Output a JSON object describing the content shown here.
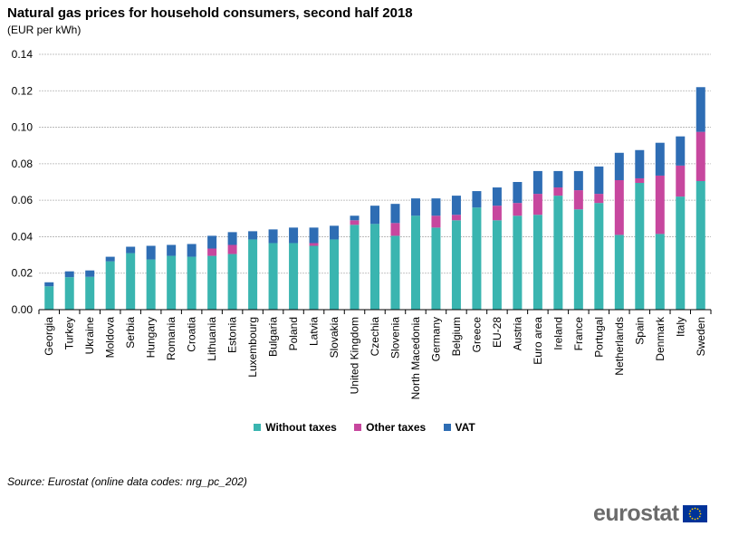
{
  "header": {
    "title": "Natural gas prices for household consumers, second half 2018",
    "subtitle": "(EUR per kWh)"
  },
  "source": "Source: Eurostat (online data codes: nrg_pc_202)",
  "logo": {
    "text": "eurostat",
    "flag_icon": "eu-flag-icon"
  },
  "colors": {
    "without_taxes": "#3AB5B0",
    "other_taxes": "#C7479E",
    "vat": "#2E6DB4",
    "grid": "#b0b0b0"
  },
  "chart_data": {
    "type": "bar",
    "stacked": true,
    "title": "Natural gas prices for household consumers, second half 2018",
    "subtitle": "(EUR per kWh)",
    "ylim": [
      0,
      0.14
    ],
    "yticks": [
      "0.00",
      "0.02",
      "0.04",
      "0.06",
      "0.08",
      "0.10",
      "0.12",
      "0.14"
    ],
    "grid": true,
    "legend_position": "bottom",
    "categories": [
      "Georgia",
      "Turkey",
      "Ukraine",
      "Moldova",
      "Serbia",
      "Hungary",
      "Romania",
      "Croatia",
      "Lithuania",
      "Estonia",
      "Luxembourg",
      "Bulgaria",
      "Poland",
      "Latvia",
      "Slovakia",
      "United Kingdom",
      "Czechia",
      "Slovenia",
      "North Macedonia",
      "Germany",
      "Belgium",
      "Greece",
      "EU-28",
      "Austria",
      "Euro area",
      "Ireland",
      "France",
      "Portugal",
      "Netherlands",
      "Spain",
      "Denmark",
      "Italy",
      "Sweden"
    ],
    "series": [
      {
        "name": "Without taxes",
        "color": "#3AB5B0",
        "values": [
          0.0128,
          0.0178,
          0.018,
          0.0265,
          0.031,
          0.0275,
          0.0295,
          0.029,
          0.0295,
          0.0305,
          0.0385,
          0.0365,
          0.0365,
          0.035,
          0.0385,
          0.0465,
          0.047,
          0.0405,
          0.0515,
          0.045,
          0.049,
          0.056,
          0.049,
          0.0515,
          0.052,
          0.0625,
          0.055,
          0.0585,
          0.041,
          0.0695,
          0.0415,
          0.062,
          0.0705
        ]
      },
      {
        "name": "Other taxes",
        "color": "#C7479E",
        "values": [
          0.0,
          0.0,
          0.0,
          0.0,
          0.0,
          0.0,
          0.0,
          0.0,
          0.004,
          0.005,
          0.0,
          0.0,
          0.0,
          0.0015,
          0.0,
          0.0025,
          0.0,
          0.007,
          0.0,
          0.0065,
          0.003,
          0.0,
          0.008,
          0.007,
          0.0115,
          0.0045,
          0.0105,
          0.005,
          0.03,
          0.0025,
          0.032,
          0.017,
          0.027
        ]
      },
      {
        "name": "VAT",
        "color": "#2E6DB4",
        "values": [
          0.0022,
          0.0032,
          0.0035,
          0.0025,
          0.0035,
          0.0075,
          0.006,
          0.007,
          0.007,
          0.007,
          0.0045,
          0.0075,
          0.0085,
          0.0085,
          0.0075,
          0.0025,
          0.01,
          0.0105,
          0.0095,
          0.0095,
          0.0105,
          0.009,
          0.01,
          0.0115,
          0.0125,
          0.009,
          0.0105,
          0.015,
          0.015,
          0.0155,
          0.018,
          0.016,
          0.0245
        ]
      }
    ]
  }
}
